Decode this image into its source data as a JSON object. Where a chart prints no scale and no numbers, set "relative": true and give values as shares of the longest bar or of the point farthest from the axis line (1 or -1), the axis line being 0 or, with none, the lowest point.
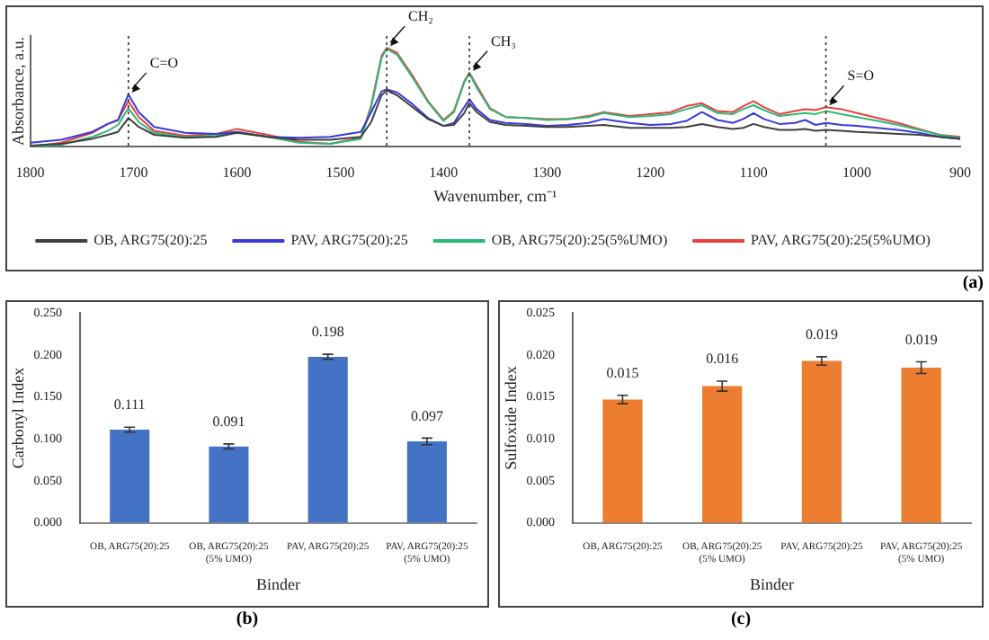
{
  "chart_data": [
    {
      "type": "line",
      "relative": true,
      "xlabel": "Wavenumber, cm⁻¹",
      "ylabel": "Absorbance, a.u.",
      "xlim": [
        1800,
        900
      ],
      "xticks": [
        1800,
        1700,
        1600,
        1500,
        1400,
        1300,
        1200,
        1100,
        1000,
        900
      ],
      "tick_labels": "x",
      "legend": "bottom",
      "marker": "none",
      "line_style": "solid",
      "x": [
        1800,
        1770,
        1740,
        1725,
        1715,
        1705,
        1695,
        1680,
        1650,
        1620,
        1600,
        1570,
        1540,
        1510,
        1480,
        1470,
        1460,
        1455,
        1445,
        1430,
        1415,
        1400,
        1390,
        1380,
        1375,
        1368,
        1355,
        1340,
        1320,
        1300,
        1280,
        1260,
        1245,
        1220,
        1200,
        1180,
        1165,
        1150,
        1135,
        1120,
        1110,
        1100,
        1090,
        1075,
        1060,
        1050,
        1040,
        1030,
        1015,
        1000,
        980,
        960,
        940,
        920,
        900
      ],
      "series": [
        {
          "name": "OB, ARG75(20):25",
          "color": "#404040",
          "values": [
            0.01,
            0.03,
            0.08,
            0.12,
            0.15,
            0.29,
            0.2,
            0.12,
            0.09,
            0.1,
            0.14,
            0.1,
            0.07,
            0.07,
            0.1,
            0.25,
            0.52,
            0.57,
            0.52,
            0.4,
            0.28,
            0.21,
            0.22,
            0.34,
            0.44,
            0.35,
            0.25,
            0.22,
            0.21,
            0.2,
            0.2,
            0.21,
            0.22,
            0.19,
            0.19,
            0.19,
            0.2,
            0.23,
            0.2,
            0.18,
            0.19,
            0.23,
            0.2,
            0.17,
            0.17,
            0.18,
            0.16,
            0.17,
            0.16,
            0.15,
            0.14,
            0.13,
            0.12,
            0.1,
            0.08
          ]
        },
        {
          "name": "PAV, ARG75(20):25",
          "color": "#3a3ad8",
          "values": [
            0.04,
            0.07,
            0.15,
            0.23,
            0.27,
            0.53,
            0.35,
            0.2,
            0.14,
            0.13,
            0.15,
            0.1,
            0.09,
            0.1,
            0.15,
            0.35,
            0.56,
            0.58,
            0.55,
            0.43,
            0.29,
            0.21,
            0.24,
            0.4,
            0.48,
            0.38,
            0.27,
            0.24,
            0.23,
            0.21,
            0.22,
            0.24,
            0.28,
            0.24,
            0.22,
            0.23,
            0.26,
            0.35,
            0.27,
            0.24,
            0.28,
            0.34,
            0.28,
            0.23,
            0.24,
            0.27,
            0.22,
            0.24,
            0.22,
            0.21,
            0.19,
            0.17,
            0.14,
            0.1,
            0.08
          ]
        },
        {
          "name": "OB, ARG75(20):25(5%UMO)",
          "color": "#2fb77a",
          "values": [
            0,
            0.02,
            0.1,
            0.16,
            0.22,
            0.39,
            0.25,
            0.14,
            0.1,
            0.11,
            0.15,
            0.1,
            0.04,
            0.03,
            0.08,
            0.4,
            0.9,
            0.99,
            0.93,
            0.7,
            0.45,
            0.26,
            0.35,
            0.65,
            0.74,
            0.6,
            0.38,
            0.3,
            0.29,
            0.27,
            0.28,
            0.3,
            0.34,
            0.3,
            0.31,
            0.33,
            0.38,
            0.42,
            0.34,
            0.33,
            0.38,
            0.42,
            0.37,
            0.31,
            0.33,
            0.34,
            0.33,
            0.36,
            0.33,
            0.3,
            0.26,
            0.22,
            0.17,
            0.12,
            0.09
          ]
        },
        {
          "name": "PAV, ARG75(20):25(5%UMO)",
          "color": "#e8413c",
          "values": [
            0,
            0.04,
            0.14,
            0.23,
            0.27,
            0.46,
            0.3,
            0.16,
            0.11,
            0.13,
            0.18,
            0.12,
            0.05,
            0.03,
            0.09,
            0.42,
            0.92,
            1,
            0.95,
            0.72,
            0.46,
            0.27,
            0.36,
            0.66,
            0.75,
            0.62,
            0.39,
            0.3,
            0.29,
            0.28,
            0.28,
            0.31,
            0.35,
            0.31,
            0.33,
            0.35,
            0.41,
            0.44,
            0.36,
            0.35,
            0.41,
            0.46,
            0.4,
            0.33,
            0.36,
            0.38,
            0.37,
            0.4,
            0.38,
            0.34,
            0.29,
            0.24,
            0.18,
            0.12,
            0.1
          ]
        }
      ],
      "ref_lines": [
        {
          "axis": "x",
          "value": 1705,
          "line_style": "dotted",
          "color": "#333333"
        },
        {
          "axis": "x",
          "value": 1455,
          "line_style": "dotted",
          "color": "#333333"
        },
        {
          "axis": "x",
          "value": 1375,
          "line_style": "dotted",
          "color": "#333333"
        },
        {
          "axis": "x",
          "value": 1030,
          "line_style": "dotted",
          "color": "#333333"
        }
      ],
      "annotations": [
        {
          "text": "C=O",
          "x": 1705,
          "y": 0.53
        },
        {
          "text": "CH₂",
          "x": 1455,
          "y": 1
        },
        {
          "text": "CH₃",
          "x": 1375,
          "y": 0.75
        },
        {
          "text": "S=O",
          "x": 1030,
          "y": 0.4
        },
        "(a)"
      ]
    },
    {
      "type": "bar",
      "xlabel": "Binder",
      "ylabel": "Carbonyl Index",
      "categories": [
        "OB, ARG75(20):25",
        "OB, ARG75(20):25 (5% UMO)",
        "PAV, ARG75(20):25",
        "PAV, ARG75(20):25 (5% UMO)"
      ],
      "values": [
        0.111,
        0.091,
        0.198,
        0.097
      ],
      "errors": [
        0.003,
        0.003,
        0.003,
        0.004
      ],
      "color": "#4472c4",
      "data_labels": true,
      "ylim": [
        0,
        0.25
      ],
      "yticks": [
        {
          "value": 0,
          "label": "0.000"
        },
        {
          "value": 0.05,
          "label": "0.050"
        },
        {
          "value": 0.1,
          "label": "0.100"
        },
        {
          "value": 0.15,
          "label": "0.150"
        },
        {
          "value": 0.2,
          "label": "0.200"
        },
        {
          "value": 0.25,
          "label": "0.250"
        }
      ],
      "annotations": [
        "(b)"
      ]
    },
    {
      "type": "bar",
      "xlabel": "Binder",
      "ylabel": "Sulfoxide Index",
      "categories": [
        "OB, ARG75(20):25",
        "OB, ARG75(20):25 (5% UMO)",
        "PAV, ARG75(20):25",
        "PAV, ARG75(20):25 (5% UMO)"
      ],
      "values": [
        0.0147,
        0.0163,
        0.0193,
        0.0185
      ],
      "errors": [
        0.0005,
        0.0006,
        0.0005,
        0.0007
      ],
      "value_labels": [
        "0.015",
        "0.016",
        "0.019",
        "0.019"
      ],
      "color": "#ed7d31",
      "ylim": [
        0,
        0.025
      ],
      "yticks": [
        {
          "value": 0,
          "label": "0.000"
        },
        {
          "value": 0.005,
          "label": "0.005"
        },
        {
          "value": 0.01,
          "label": "0.010"
        },
        {
          "value": 0.015,
          "label": "0.015"
        },
        {
          "value": 0.02,
          "label": "0.020"
        },
        {
          "value": 0.025,
          "label": "0.025"
        }
      ],
      "annotations": [
        "(c)"
      ]
    }
  ]
}
